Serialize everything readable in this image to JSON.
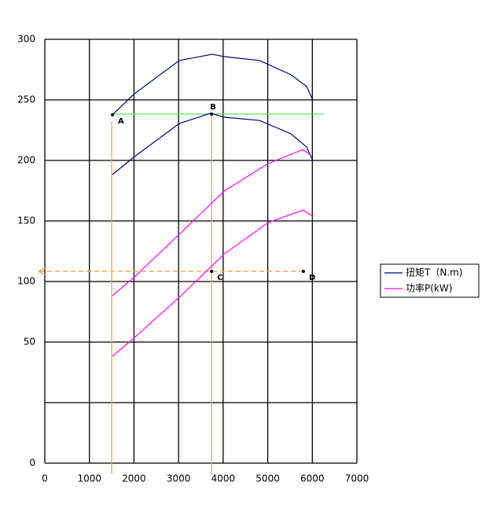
{
  "chart_data": {
    "type": "line",
    "xlim": [
      0,
      7000
    ],
    "xticks": [
      0,
      1000,
      2000,
      3000,
      4000,
      5000,
      6000,
      7000
    ],
    "ylim": [
      -50,
      300
    ],
    "yticks": [
      300,
      250,
      200,
      150,
      100,
      50,
      {
        "value": 0,
        "label": null
      }
    ],
    "origin_label": "0",
    "grid": true,
    "legend": "right",
    "series": [
      {
        "name": "扭矩T（N.m)",
        "color": "#000080",
        "lines": [
          {
            "x": [
              1517,
              1993,
              3016,
              3757,
              4021,
              4815,
              5520,
              5873,
              6014
            ],
            "values": [
              237.7,
              254.5,
              282.5,
              287.7,
              285.7,
              282.5,
              270.8,
              261,
              249.4
            ]
          },
          {
            "x": [
              1517,
              1993,
              3016,
              3721,
              4021,
              4815,
              5520,
              5873,
              6014
            ],
            "values": [
              188.3,
              202.6,
              230.5,
              239,
              235.7,
              233,
              222,
              211,
              199.4
            ]
          }
        ]
      },
      {
        "name": "功率P(kW)",
        "color": "#ff00ff",
        "lines": [
          {
            "x": [
              1517,
              1993,
              3016,
              4021,
              5009,
              5785,
              5979
            ],
            "values": [
              88.3,
              103.2,
              139,
              174.7,
              197.4,
              209,
              203.9
            ]
          },
          {
            "x": [
              1517,
              1993,
              3016,
              4021,
              5009,
              5785,
              6014
            ],
            "values": [
              38.3,
              53.2,
              87,
              122.7,
              148.7,
              159,
              153.9
            ]
          }
        ]
      }
    ],
    "guides": [
      {
        "color": "#66dd66",
        "x": [
          1517,
          6261
        ],
        "values": [
          238.3,
          238.3
        ]
      },
      {
        "color": "#f5a142",
        "x": [
          1500,
          1500
        ],
        "values": [
          232,
          -59
        ]
      },
      {
        "color": "#f5a142",
        "x": [
          3740,
          3740
        ],
        "values": [
          238.3,
          -59
        ]
      },
      {
        "color": "#f5a142",
        "x": [
          5800,
          -120
        ],
        "values": [
          108.4,
          108.4
        ],
        "dashed": true
      }
    ],
    "points": [
      {
        "label": "A",
        "x": 1517,
        "y": 237.7
      },
      {
        "label": "B",
        "x": 3740,
        "y": 238.3
      },
      {
        "label": "C",
        "x": 3740,
        "y": 108.4
      },
      {
        "label": "D",
        "x": 5800,
        "y": 108.4
      }
    ]
  }
}
